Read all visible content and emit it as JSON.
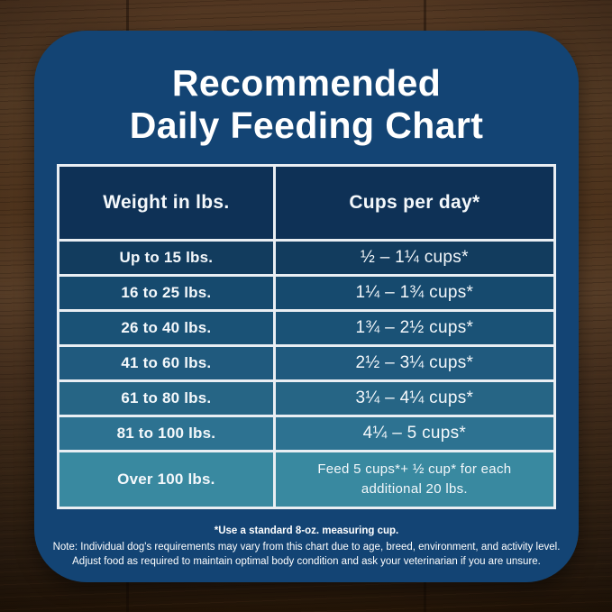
{
  "title": {
    "line1": "Recommended",
    "line2": "Daily Feeding Chart"
  },
  "colors": {
    "card_background": "#134474",
    "table_border": "#e9eef3",
    "header_cell": "#0e3156",
    "text": "#ffffff",
    "row_colors": [
      "#123c5e",
      "#164a6e",
      "#1a5276",
      "#205a7e",
      "#266585",
      "#2d7291",
      "#3989a0"
    ]
  },
  "table": {
    "columns": [
      "Weight in lbs.",
      "Cups per day*"
    ],
    "rows": [
      {
        "weight": "Up to 15 lbs.",
        "cups": "½ – 1¼ cups*"
      },
      {
        "weight": "16 to 25 lbs.",
        "cups": "1¼ – 1¾ cups*"
      },
      {
        "weight": "26 to 40 lbs.",
        "cups": "1¾ – 2½ cups*"
      },
      {
        "weight": "41 to 60 lbs.",
        "cups": "2½ – 3¼ cups*"
      },
      {
        "weight": "61 to 80 lbs.",
        "cups": "3¼ – 4¼ cups*"
      },
      {
        "weight": "81 to 100 lbs.",
        "cups": "4¼ – 5 cups*"
      },
      {
        "weight": "Over 100 lbs.",
        "cups": "Feed 5 cups*+ ½ cup* for each additional 20 lbs."
      }
    ]
  },
  "footer": {
    "measuring_note": "*Use a standard 8-oz. measuring cup.",
    "note_line1": "Note: Individual dog's requirements may vary from this chart due to age, breed, environment, and activity level.",
    "note_line2": "Adjust food as required to maintain optimal body condition and ask your veterinarian if you are unsure."
  },
  "chart_data": {
    "type": "table",
    "title": "Recommended Daily Feeding Chart",
    "columns": [
      "Weight in lbs.",
      "Cups per day*"
    ],
    "rows": [
      [
        "Up to 15 lbs.",
        "½ – 1¼ cups*"
      ],
      [
        "16 to 25 lbs.",
        "1¼ – 1¾ cups*"
      ],
      [
        "26 to 40 lbs.",
        "1¾ – 2½ cups*"
      ],
      [
        "41 to 60 lbs.",
        "2½ – 3¼ cups*"
      ],
      [
        "61 to 80 lbs.",
        "3¼ – 4¼ cups*"
      ],
      [
        "81 to 100 lbs.",
        "4¼ – 5 cups*"
      ],
      [
        "Over 100 lbs.",
        "Feed 5 cups*+ ½ cup* for each additional 20 lbs."
      ]
    ],
    "footnotes": [
      "*Use a standard 8-oz. measuring cup.",
      "Note: Individual dog's requirements may vary from this chart due to age, breed, environment, and activity level.",
      "Adjust food as required to maintain optimal body condition and ask your veterinarian if you are unsure."
    ]
  }
}
